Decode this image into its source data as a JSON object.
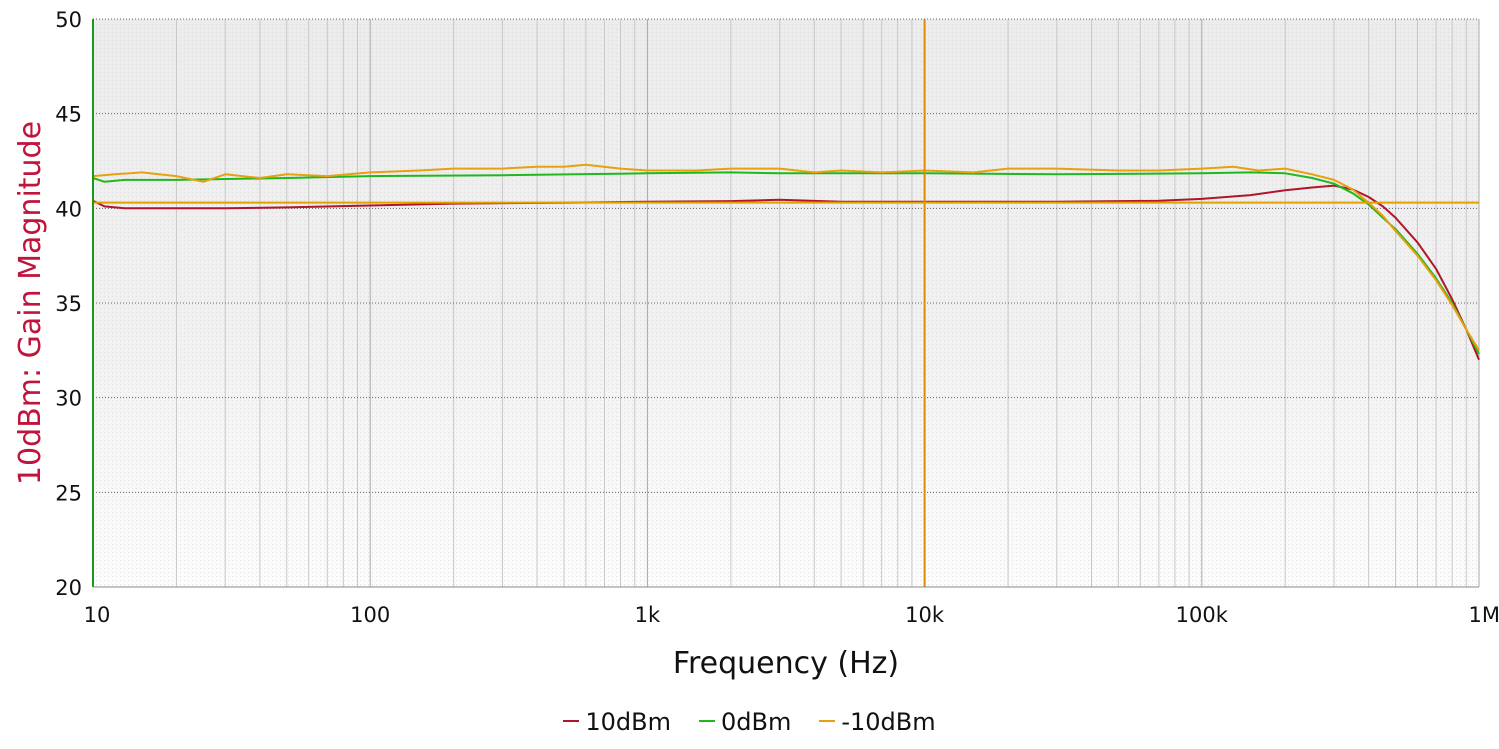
{
  "chart_data": {
    "type": "line",
    "title": "",
    "xlabel": "Frequency (Hz)",
    "ylabel": "10dBm: Gain Magnitude",
    "xscale": "log",
    "xlim": [
      10,
      1000000
    ],
    "ylim": [
      20,
      50
    ],
    "x_ticks": [
      {
        "value": 10,
        "label": "10"
      },
      {
        "value": 100,
        "label": "100"
      },
      {
        "value": 1000,
        "label": "1k"
      },
      {
        "value": 10000,
        "label": "10k"
      },
      {
        "value": 100000,
        "label": "100k"
      },
      {
        "value": 1000000,
        "label": "1M"
      }
    ],
    "y_ticks": [
      20,
      25,
      30,
      35,
      40,
      45,
      50
    ],
    "grid": true,
    "legend_position": "bottom-center",
    "reference_lines": [
      {
        "orientation": "vertical",
        "x": 10000,
        "color": "#e08a00"
      },
      {
        "orientation": "horizontal",
        "y": 40.3,
        "color": "#e0a000"
      }
    ],
    "series": [
      {
        "name": "10dBm",
        "color": "#b0152c",
        "x": [
          10,
          11,
          13,
          20,
          30,
          50,
          100,
          200,
          500,
          1000,
          2000,
          3000,
          5000,
          10000,
          30000,
          70000,
          100000,
          150000,
          200000,
          250000,
          300000,
          350000,
          400000,
          450000,
          500000,
          600000,
          700000,
          800000,
          900000,
          1000000
        ],
        "values": [
          40.4,
          40.1,
          40.0,
          40.0,
          40.0,
          40.05,
          40.15,
          40.25,
          40.3,
          40.35,
          40.38,
          40.45,
          40.35,
          40.35,
          40.35,
          40.4,
          40.5,
          40.7,
          40.95,
          41.1,
          41.2,
          41.0,
          40.6,
          40.1,
          39.5,
          38.2,
          36.8,
          35.2,
          33.6,
          32.0
        ]
      },
      {
        "name": "0dBm",
        "color": "#1fb81f",
        "x": [
          10,
          11,
          13,
          20,
          50,
          100,
          300,
          1000,
          2000,
          3000,
          10000,
          30000,
          100000,
          150000,
          200000,
          250000,
          300000,
          350000,
          400000,
          450000,
          500000,
          600000,
          700000,
          800000,
          900000,
          1000000
        ],
        "values": [
          41.6,
          41.4,
          41.5,
          41.5,
          41.6,
          41.7,
          41.75,
          41.85,
          41.9,
          41.85,
          41.85,
          41.8,
          41.85,
          41.9,
          41.85,
          41.6,
          41.3,
          40.8,
          40.2,
          39.5,
          38.9,
          37.6,
          36.3,
          35.0,
          33.6,
          32.3
        ]
      },
      {
        "name": "-10dBm",
        "color": "#e8a010",
        "x": [
          10,
          12,
          15,
          20,
          25,
          30,
          40,
          50,
          70,
          100,
          150,
          200,
          300,
          400,
          500,
          600,
          800,
          1000,
          1500,
          2000,
          3000,
          4000,
          5000,
          7000,
          10000,
          15000,
          20000,
          30000,
          50000,
          70000,
          100000,
          130000,
          160000,
          200000,
          250000,
          300000,
          350000,
          400000,
          450000,
          500000,
          600000,
          700000,
          800000,
          900000,
          1000000
        ],
        "values": [
          41.7,
          41.8,
          41.9,
          41.7,
          41.4,
          41.8,
          41.6,
          41.8,
          41.7,
          41.9,
          42.0,
          42.1,
          42.1,
          42.2,
          42.2,
          42.3,
          42.1,
          42.0,
          42.0,
          42.1,
          42.1,
          41.9,
          42.0,
          41.9,
          42.0,
          41.9,
          42.1,
          42.1,
          42.0,
          42.0,
          42.1,
          42.2,
          42.0,
          42.1,
          41.8,
          41.5,
          41.0,
          40.3,
          39.6,
          38.8,
          37.5,
          36.2,
          34.9,
          33.6,
          32.5
        ]
      }
    ]
  }
}
